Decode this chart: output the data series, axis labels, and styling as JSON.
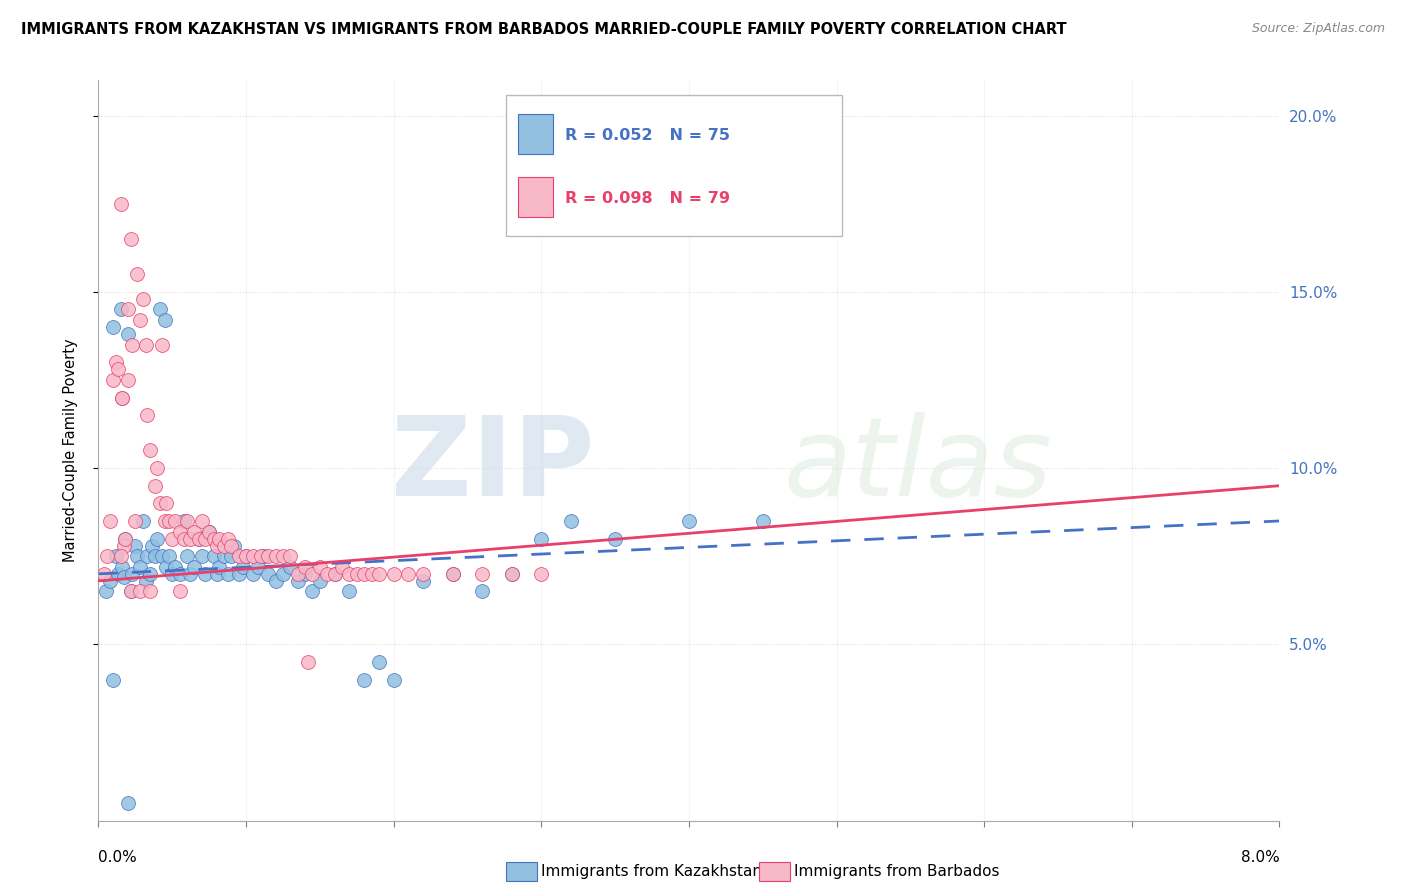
{
  "title": "IMMIGRANTS FROM KAZAKHSTAN VS IMMIGRANTS FROM BARBADOS MARRIED-COUPLE FAMILY POVERTY CORRELATION CHART",
  "source": "Source: ZipAtlas.com",
  "ylabel": "Married-Couple Family Poverty",
  "xlim": [
    0.0,
    8.0
  ],
  "ylim": [
    0.0,
    21.0
  ],
  "yticks": [
    5.0,
    10.0,
    15.0,
    20.0
  ],
  "ytick_labels": [
    "5.0%",
    "10.0%",
    "15.0%",
    "20.0%"
  ],
  "xtick_labels": [
    "0.0%",
    "8.0%"
  ],
  "legend_r1": "R = 0.052",
  "legend_n1": "N = 75",
  "legend_r2": "R = 0.098",
  "legend_n2": "N = 79",
  "series1_label": "Immigrants from Kazakhstan",
  "series2_label": "Immigrants from Barbados",
  "color1": "#92C0E0",
  "color2": "#F7B8C8",
  "trendline1_color": "#4472C4",
  "trendline2_color": "#E8406A",
  "watermark_zip": "ZIP",
  "watermark_atlas": "atlas",
  "background_color": "#ffffff",
  "kaz_x": [
    0.05,
    0.08,
    0.1,
    0.12,
    0.13,
    0.15,
    0.16,
    0.17,
    0.18,
    0.2,
    0.22,
    0.23,
    0.25,
    0.26,
    0.28,
    0.3,
    0.32,
    0.33,
    0.35,
    0.36,
    0.38,
    0.4,
    0.42,
    0.43,
    0.45,
    0.46,
    0.48,
    0.5,
    0.52,
    0.55,
    0.58,
    0.6,
    0.62,
    0.65,
    0.68,
    0.7,
    0.72,
    0.75,
    0.78,
    0.8,
    0.82,
    0.85,
    0.88,
    0.9,
    0.92,
    0.95,
    0.98,
    1.0,
    1.05,
    1.08,
    1.12,
    1.15,
    1.2,
    1.25,
    1.3,
    1.35,
    1.4,
    1.45,
    1.5,
    1.6,
    1.7,
    1.8,
    1.9,
    2.0,
    2.2,
    2.4,
    2.6,
    2.8,
    3.0,
    3.2,
    3.5,
    4.0,
    4.5,
    0.1,
    0.2
  ],
  "kaz_y": [
    6.5,
    6.8,
    14.0,
    7.5,
    7.0,
    14.5,
    7.2,
    6.9,
    8.0,
    13.8,
    6.5,
    7.0,
    7.8,
    7.5,
    7.2,
    8.5,
    6.8,
    7.5,
    7.0,
    7.8,
    7.5,
    8.0,
    14.5,
    7.5,
    14.2,
    7.2,
    7.5,
    7.0,
    7.2,
    7.0,
    8.5,
    7.5,
    7.0,
    7.2,
    8.0,
    7.5,
    7.0,
    8.2,
    7.5,
    7.0,
    7.2,
    7.5,
    7.0,
    7.5,
    7.8,
    7.0,
    7.2,
    7.5,
    7.0,
    7.2,
    7.5,
    7.0,
    6.8,
    7.0,
    7.2,
    6.8,
    7.0,
    6.5,
    6.8,
    7.0,
    6.5,
    4.0,
    4.5,
    4.0,
    6.8,
    7.0,
    6.5,
    7.0,
    8.0,
    8.5,
    8.0,
    8.5,
    8.5,
    4.0,
    0.5
  ],
  "bar_x": [
    0.04,
    0.06,
    0.08,
    0.1,
    0.12,
    0.13,
    0.15,
    0.16,
    0.17,
    0.18,
    0.2,
    0.22,
    0.23,
    0.25,
    0.26,
    0.28,
    0.3,
    0.32,
    0.33,
    0.35,
    0.38,
    0.4,
    0.42,
    0.43,
    0.45,
    0.46,
    0.48,
    0.5,
    0.52,
    0.55,
    0.58,
    0.6,
    0.62,
    0.65,
    0.68,
    0.7,
    0.72,
    0.75,
    0.78,
    0.8,
    0.82,
    0.85,
    0.88,
    0.9,
    0.95,
    1.0,
    1.05,
    1.1,
    1.15,
    1.2,
    1.25,
    1.3,
    1.35,
    1.4,
    1.45,
    1.5,
    1.55,
    1.6,
    1.65,
    1.7,
    1.75,
    1.8,
    1.85,
    1.9,
    2.0,
    2.1,
    2.2,
    2.4,
    2.6,
    2.8,
    3.0,
    1.42,
    0.15,
    0.22,
    0.28,
    0.35,
    0.55,
    0.2,
    0.16
  ],
  "bar_y": [
    7.0,
    7.5,
    8.5,
    12.5,
    13.0,
    12.8,
    17.5,
    12.0,
    7.8,
    8.0,
    14.5,
    16.5,
    13.5,
    8.5,
    15.5,
    14.2,
    14.8,
    13.5,
    11.5,
    10.5,
    9.5,
    10.0,
    9.0,
    13.5,
    8.5,
    9.0,
    8.5,
    8.0,
    8.5,
    8.2,
    8.0,
    8.5,
    8.0,
    8.2,
    8.0,
    8.5,
    8.0,
    8.2,
    8.0,
    7.8,
    8.0,
    7.8,
    8.0,
    7.8,
    7.5,
    7.5,
    7.5,
    7.5,
    7.5,
    7.5,
    7.5,
    7.5,
    7.0,
    7.2,
    7.0,
    7.2,
    7.0,
    7.0,
    7.2,
    7.0,
    7.0,
    7.0,
    7.0,
    7.0,
    7.0,
    7.0,
    7.0,
    7.0,
    7.0,
    7.0,
    7.0,
    4.5,
    7.5,
    6.5,
    6.5,
    6.5,
    6.5,
    12.5,
    12.0
  ]
}
